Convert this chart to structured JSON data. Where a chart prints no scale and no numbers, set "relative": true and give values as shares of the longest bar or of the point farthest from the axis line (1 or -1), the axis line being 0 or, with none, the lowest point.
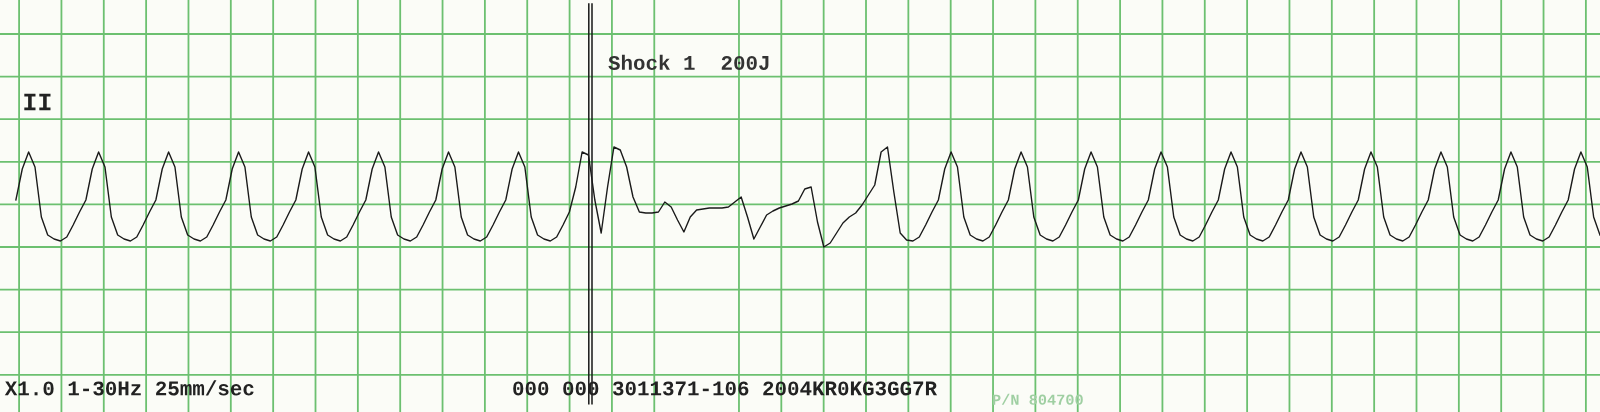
{
  "chart_data": {
    "type": "line",
    "relative": true,
    "grid": true,
    "marker": "none",
    "line_style": "solid",
    "categories": [
      null,
      null,
      null,
      null,
      null,
      null,
      null,
      null,
      null,
      null,
      null,
      null,
      null,
      null,
      null,
      null,
      null,
      null,
      null,
      null,
      null,
      null,
      null,
      null,
      null,
      null,
      null,
      null,
      null,
      null,
      null,
      null,
      null,
      null,
      null,
      null,
      null,
      null,
      null,
      null,
      null,
      null,
      null,
      null,
      null,
      null,
      null,
      null,
      null,
      null,
      null,
      null,
      null,
      null,
      null,
      null,
      null,
      null,
      null,
      null,
      null,
      null,
      null,
      null,
      null,
      null,
      null,
      null,
      null,
      null,
      null,
      null,
      null,
      null,
      null,
      null,
      null,
      null,
      null,
      null,
      null,
      null,
      null,
      null,
      null,
      null,
      null,
      null,
      null,
      null,
      null,
      null,
      null,
      null,
      null,
      null,
      null,
      null,
      null,
      null,
      null,
      null,
      null,
      null,
      null,
      null,
      null,
      null,
      null,
      null,
      null,
      null,
      null,
      null,
      null,
      null,
      null,
      null,
      null,
      null,
      null,
      null,
      null,
      null,
      null,
      null,
      null,
      null,
      null,
      null,
      null,
      null,
      null,
      null,
      null,
      null,
      null,
      null,
      null,
      null,
      null,
      null,
      null,
      null,
      null,
      null,
      null,
      null,
      null,
      null,
      null,
      null,
      null,
      null,
      null,
      null,
      null,
      null,
      null,
      null,
      null,
      null,
      null,
      null,
      null,
      null,
      null,
      null,
      null,
      null,
      null,
      null,
      null,
      null,
      null,
      null,
      null,
      null,
      null,
      null,
      null,
      null,
      null,
      null,
      null,
      null,
      null,
      null,
      null,
      null,
      null,
      null,
      null,
      null,
      null,
      null,
      null,
      null,
      null,
      null,
      null,
      null,
      null,
      null,
      null,
      null,
      null,
      null,
      null,
      null,
      null,
      null,
      null,
      null,
      null,
      null,
      null,
      null,
      null,
      null,
      null,
      null,
      null,
      null,
      null,
      null,
      null,
      null,
      null,
      null,
      null,
      null,
      null,
      null,
      null,
      null,
      null,
      null,
      null,
      null,
      null,
      null,
      null,
      null,
      null,
      null,
      null,
      null,
      null,
      null
    ],
    "series": [
      {
        "color": "#1a1a1a",
        "values": [
          0.47,
          0.78,
          0.95,
          0.8,
          0.3,
          0.12,
          0.08,
          0.06,
          0.1,
          0.22,
          0.35,
          0.47,
          0.78,
          0.95,
          0.8,
          0.3,
          0.12,
          0.08,
          0.06,
          0.1,
          0.22,
          0.35,
          0.47,
          0.78,
          0.95,
          0.8,
          0.3,
          0.12,
          0.08,
          0.06,
          0.1,
          0.22,
          0.35,
          0.47,
          0.78,
          0.95,
          0.8,
          0.3,
          0.12,
          0.08,
          0.06,
          0.1,
          0.22,
          0.35,
          0.47,
          0.78,
          0.95,
          0.8,
          0.3,
          0.12,
          0.08,
          0.06,
          0.1,
          0.22,
          0.35,
          0.47,
          0.78,
          0.95,
          0.8,
          0.3,
          0.12,
          0.08,
          0.06,
          0.1,
          0.22,
          0.35,
          0.47,
          0.78,
          0.95,
          0.8,
          0.3,
          0.12,
          0.08,
          0.06,
          0.1,
          0.22,
          0.35,
          0.47,
          0.78,
          0.95,
          0.8,
          0.3,
          0.12,
          0.08,
          0.06,
          0.1,
          0.22,
          0.35,
          0.6,
          0.95,
          0.92,
          0.47,
          0.14,
          0.6,
          1.0,
          0.97,
          0.8,
          0.5,
          0.35,
          0.34,
          0.34,
          0.35,
          0.45,
          0.4,
          0.27,
          0.15,
          0.3,
          0.37,
          0.38,
          0.39,
          0.39,
          0.39,
          0.4,
          0.45,
          0.5,
          0.3,
          0.08,
          0.2,
          0.32,
          0.36,
          0.39,
          0.41,
          0.43,
          0.46,
          0.58,
          0.6,
          0.25,
          0.0,
          0.04,
          0.14,
          0.24,
          0.3,
          0.34,
          0.42,
          0.52,
          0.62,
          0.95,
          1.0,
          0.55,
          0.14,
          0.07,
          0.06,
          0.1,
          0.22,
          0.35,
          0.47,
          0.78,
          0.95,
          0.8,
          0.3,
          0.12,
          0.08,
          0.06,
          0.1,
          0.22,
          0.35,
          0.47,
          0.78,
          0.95,
          0.8,
          0.3,
          0.12,
          0.08,
          0.06,
          0.1,
          0.22,
          0.35,
          0.47,
          0.78,
          0.95,
          0.8,
          0.3,
          0.12,
          0.08,
          0.06,
          0.1,
          0.22,
          0.35,
          0.47,
          0.78,
          0.95,
          0.8,
          0.3,
          0.12,
          0.08,
          0.06,
          0.1,
          0.22,
          0.35,
          0.47,
          0.78,
          0.95,
          0.8,
          0.3,
          0.12,
          0.08,
          0.06,
          0.1,
          0.22,
          0.35,
          0.47,
          0.78,
          0.95,
          0.8,
          0.3,
          0.12,
          0.08,
          0.06,
          0.1,
          0.22,
          0.35,
          0.47,
          0.78,
          0.95,
          0.8,
          0.3,
          0.12,
          0.08,
          0.06,
          0.1,
          0.22,
          0.35,
          0.47,
          0.78,
          0.95,
          0.8,
          0.3,
          0.12,
          0.08,
          0.06,
          0.1,
          0.22,
          0.35,
          0.47,
          0.78,
          0.95,
          0.8,
          0.3,
          0.12,
          0.08,
          0.06,
          0.1,
          0.22,
          0.35,
          0.47,
          0.78,
          0.95,
          0.8,
          0.3,
          0.12
        ]
      }
    ],
    "annotations": [
      "II",
      "Shock 1  200J",
      "X1.0 1-30Hz 25mm/sec",
      "000 000 3011371-106 2004KR0KG3GG7R",
      "P/N 804700"
    ]
  }
}
